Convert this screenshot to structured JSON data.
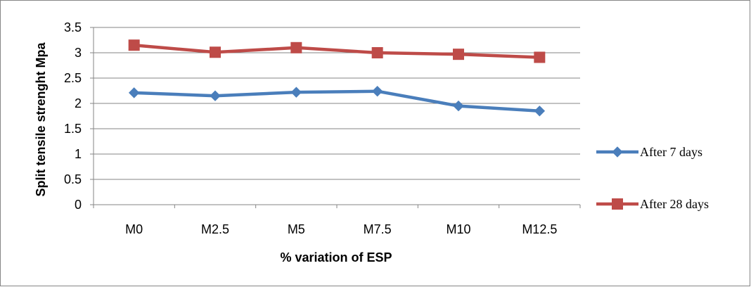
{
  "chart_data": {
    "type": "line",
    "categories": [
      "M0",
      "M2.5",
      "M5",
      "M7.5",
      "M10",
      "M12.5"
    ],
    "series": [
      {
        "name": "After 7 days",
        "values": [
          2.21,
          2.15,
          2.22,
          2.24,
          1.95,
          1.85
        ],
        "color": "#4a7ebb",
        "marker": "diamond"
      },
      {
        "name": "After 28 days",
        "values": [
          3.15,
          3.01,
          3.1,
          3.0,
          2.97,
          2.91
        ],
        "color": "#be4b48",
        "marker": "square"
      }
    ],
    "xlabel": "% variation of ESP",
    "ylabel": "Split tensile strenght Mpa",
    "ylim": [
      0,
      3.5
    ],
    "yticks": [
      "0",
      "0.5",
      "1",
      "1.5",
      "2",
      "2.5",
      "3",
      "3.5"
    ],
    "grid": true,
    "legend_position": "right"
  }
}
